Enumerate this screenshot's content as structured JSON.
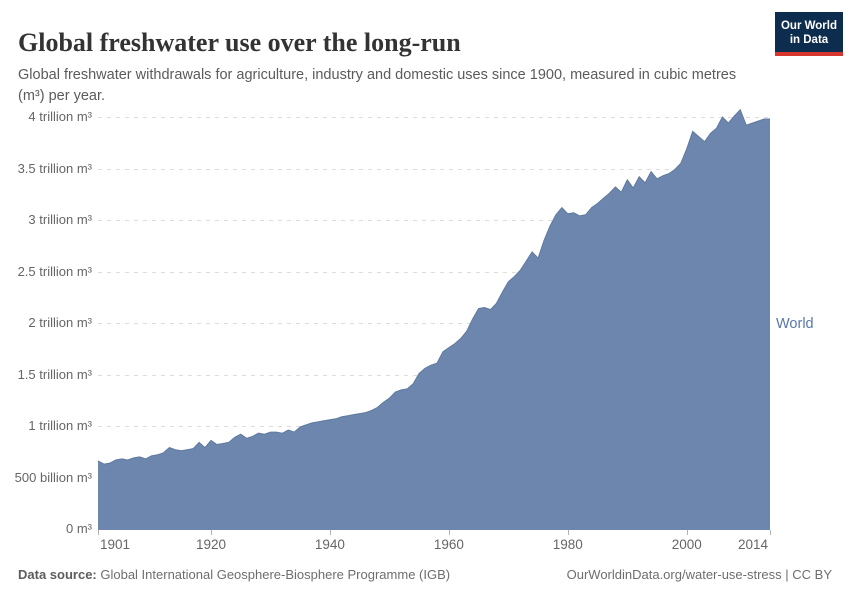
{
  "header": {
    "title": "Global freshwater use over the long-run",
    "subtitle": "Global freshwater withdrawals for agriculture, industry and domestic uses since 1900, measured in cubic metres (m³) per year.",
    "logo": {
      "line1": "Our World",
      "line2": "in Data",
      "bg_color": "#0d2d4f",
      "bar_color": "#d7362e"
    }
  },
  "chart_data": {
    "type": "area",
    "title": "Global freshwater use over the long-run",
    "series_label": "World",
    "unit": "trillion m³ per year",
    "xlabel": "",
    "ylabel": "",
    "grid": "horizontal dashed",
    "legend_position": "right of area end",
    "area_color": "#6c86ad",
    "outline_color": "#60799f",
    "label_color": "#5878a8",
    "xlim": [
      1901,
      2014
    ],
    "ylim": [
      0,
      4.17
    ],
    "xticks": [
      1901,
      1920,
      1940,
      1960,
      1980,
      2000,
      2014
    ],
    "yticks": [
      {
        "value": 0,
        "label": "0 m³"
      },
      {
        "value": 0.5,
        "label": "500 billion m³"
      },
      {
        "value": 1,
        "label": "1 trillion m³"
      },
      {
        "value": 1.5,
        "label": "1.5 trillion m³"
      },
      {
        "value": 2,
        "label": "2 trillion m³"
      },
      {
        "value": 2.5,
        "label": "2.5 trillion m³"
      },
      {
        "value": 3,
        "label": "3 trillion m³"
      },
      {
        "value": 3.5,
        "label": "3.5 trillion m³"
      },
      {
        "value": 4,
        "label": "4 trillion m³"
      }
    ],
    "x": [
      1901,
      1902,
      1903,
      1904,
      1905,
      1906,
      1907,
      1908,
      1909,
      1910,
      1911,
      1912,
      1913,
      1914,
      1915,
      1916,
      1917,
      1918,
      1919,
      1920,
      1921,
      1922,
      1923,
      1924,
      1925,
      1926,
      1927,
      1928,
      1929,
      1930,
      1931,
      1932,
      1933,
      1934,
      1935,
      1936,
      1937,
      1938,
      1939,
      1940,
      1941,
      1942,
      1943,
      1944,
      1945,
      1946,
      1947,
      1948,
      1949,
      1950,
      1951,
      1952,
      1953,
      1954,
      1955,
      1956,
      1957,
      1958,
      1959,
      1960,
      1961,
      1962,
      1963,
      1964,
      1965,
      1966,
      1967,
      1968,
      1969,
      1970,
      1971,
      1972,
      1973,
      1974,
      1975,
      1976,
      1977,
      1978,
      1979,
      1980,
      1981,
      1982,
      1983,
      1984,
      1985,
      1986,
      1987,
      1988,
      1989,
      1990,
      1991,
      1992,
      1993,
      1994,
      1995,
      1996,
      1997,
      1998,
      1999,
      2000,
      2001,
      2002,
      2003,
      2004,
      2005,
      2006,
      2007,
      2008,
      2009,
      2010,
      2011,
      2012,
      2013,
      2014
    ],
    "values": [
      0.67,
      0.64,
      0.65,
      0.68,
      0.69,
      0.68,
      0.7,
      0.71,
      0.69,
      0.72,
      0.73,
      0.75,
      0.8,
      0.78,
      0.77,
      0.78,
      0.79,
      0.85,
      0.8,
      0.87,
      0.83,
      0.84,
      0.85,
      0.9,
      0.93,
      0.89,
      0.91,
      0.94,
      0.93,
      0.95,
      0.95,
      0.94,
      0.97,
      0.95,
      1.0,
      1.02,
      1.04,
      1.05,
      1.06,
      1.07,
      1.08,
      1.1,
      1.11,
      1.12,
      1.13,
      1.14,
      1.16,
      1.19,
      1.24,
      1.28,
      1.34,
      1.36,
      1.37,
      1.42,
      1.52,
      1.57,
      1.6,
      1.62,
      1.73,
      1.77,
      1.81,
      1.86,
      1.93,
      2.05,
      2.15,
      2.16,
      2.14,
      2.2,
      2.31,
      2.41,
      2.46,
      2.52,
      2.61,
      2.7,
      2.64,
      2.81,
      2.95,
      3.06,
      3.13,
      3.07,
      3.08,
      3.05,
      3.06,
      3.13,
      3.17,
      3.22,
      3.27,
      3.33,
      3.28,
      3.4,
      3.32,
      3.43,
      3.37,
      3.48,
      3.41,
      3.44,
      3.46,
      3.5,
      3.56,
      3.7,
      3.87,
      3.82,
      3.77,
      3.85,
      3.9,
      4.01,
      3.95,
      4.02,
      4.08,
      3.93,
      3.95,
      3.97,
      3.99,
      3.99
    ]
  },
  "footer": {
    "source_label": "Data source:",
    "source_text": " Global International Geosphere-Biosphere Programme (IGB)",
    "link_text": "OurWorldinData.org/water-use-stress | CC BY"
  }
}
